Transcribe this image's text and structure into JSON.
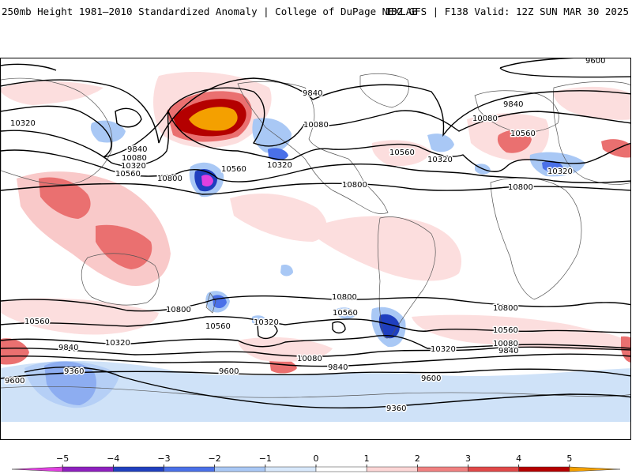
{
  "header": {
    "title": "250mb Height 1981–2010 Standardized Anomaly | College of DuPage NEXLAB",
    "run_info": "18Z GFS | F138 Valid: 12Z SUN MAR 30 2025"
  },
  "contour_labels": {
    "c9600": "9600",
    "c9840": "9840",
    "c10080": "10080",
    "c10320": "10320",
    "c10560": "10560",
    "c10800": "10800",
    "c9360": "9360"
  },
  "colorbar": {
    "ticks": [
      "−5",
      "−4",
      "−3",
      "−2",
      "−1",
      "0",
      "1",
      "2",
      "3",
      "4",
      "5"
    ],
    "colors": [
      "#e040e0",
      "#8e1fbf",
      "#1f3fbf",
      "#4a70e8",
      "#a9c8f5",
      "#d8e8fb",
      "#ffffff",
      "#fcd6d6",
      "#f08080",
      "#e04848",
      "#b40000",
      "#f4a000"
    ]
  }
}
